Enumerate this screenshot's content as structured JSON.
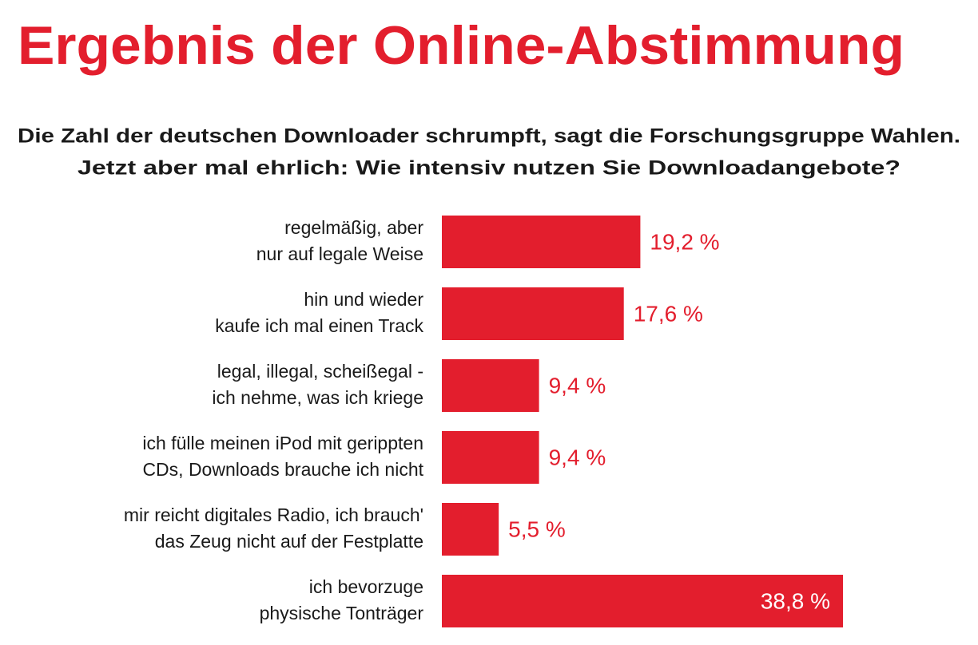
{
  "chart_data": {
    "type": "bar",
    "orientation": "horizontal",
    "title": "Ergebnis der Online-Abstimmung",
    "subtitle": [
      "Die Zahl der deutschen Downloader schrumpft, sagt die Forschungsgruppe Wahlen.",
      "Jetzt aber mal ehrlich: Wie intensiv nutzen Sie Downloadangebote?"
    ],
    "categories": [
      [
        "regelmäßig, aber",
        "nur auf legale Weise"
      ],
      [
        "hin und wieder",
        "kaufe ich mal einen Track"
      ],
      [
        "legal, illegal, scheißegal -",
        "ich nehme, was ich kriege"
      ],
      [
        "ich fülle meinen iPod mit gerippten",
        "CDs, Downloads brauche ich nicht"
      ],
      [
        "mir reicht digitales Radio, ich brauch'",
        "das Zeug nicht auf der Festplatte"
      ],
      [
        "ich bevorzuge",
        "physische Tonträger"
      ]
    ],
    "values": [
      19.2,
      17.6,
      9.4,
      9.4,
      5.5,
      38.8
    ],
    "value_labels": [
      "19,2 %",
      "17,6 %",
      "9,4 %",
      "9,4 %",
      "5,5 %",
      "38,8 %"
    ],
    "color": "#e31e2d"
  }
}
